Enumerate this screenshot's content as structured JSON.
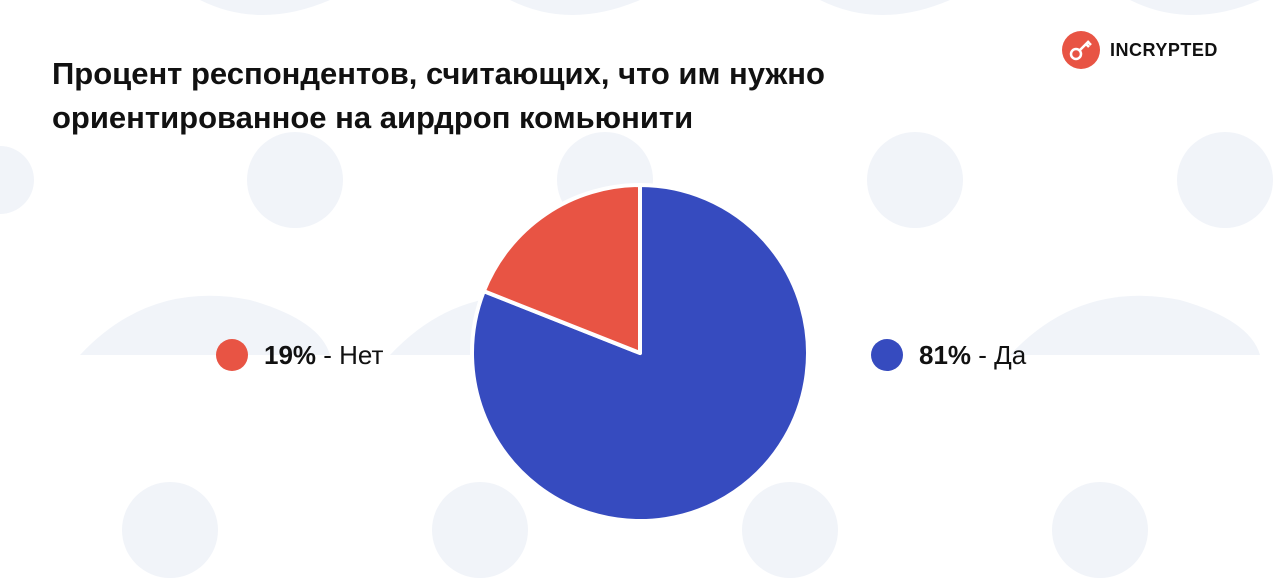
{
  "brand": "INCRYPTED",
  "chart_data": {
    "type": "pie",
    "title": "Процент респондентов, считающих, что им нужно ориентированное на аирдроп комьюнити",
    "categories": [
      "Да",
      "Нет"
    ],
    "values": [
      81,
      19
    ],
    "value_labels": [
      "81%",
      "19%"
    ],
    "label_separator": " - ",
    "colors": [
      "#364bbf",
      "#e85444"
    ]
  }
}
